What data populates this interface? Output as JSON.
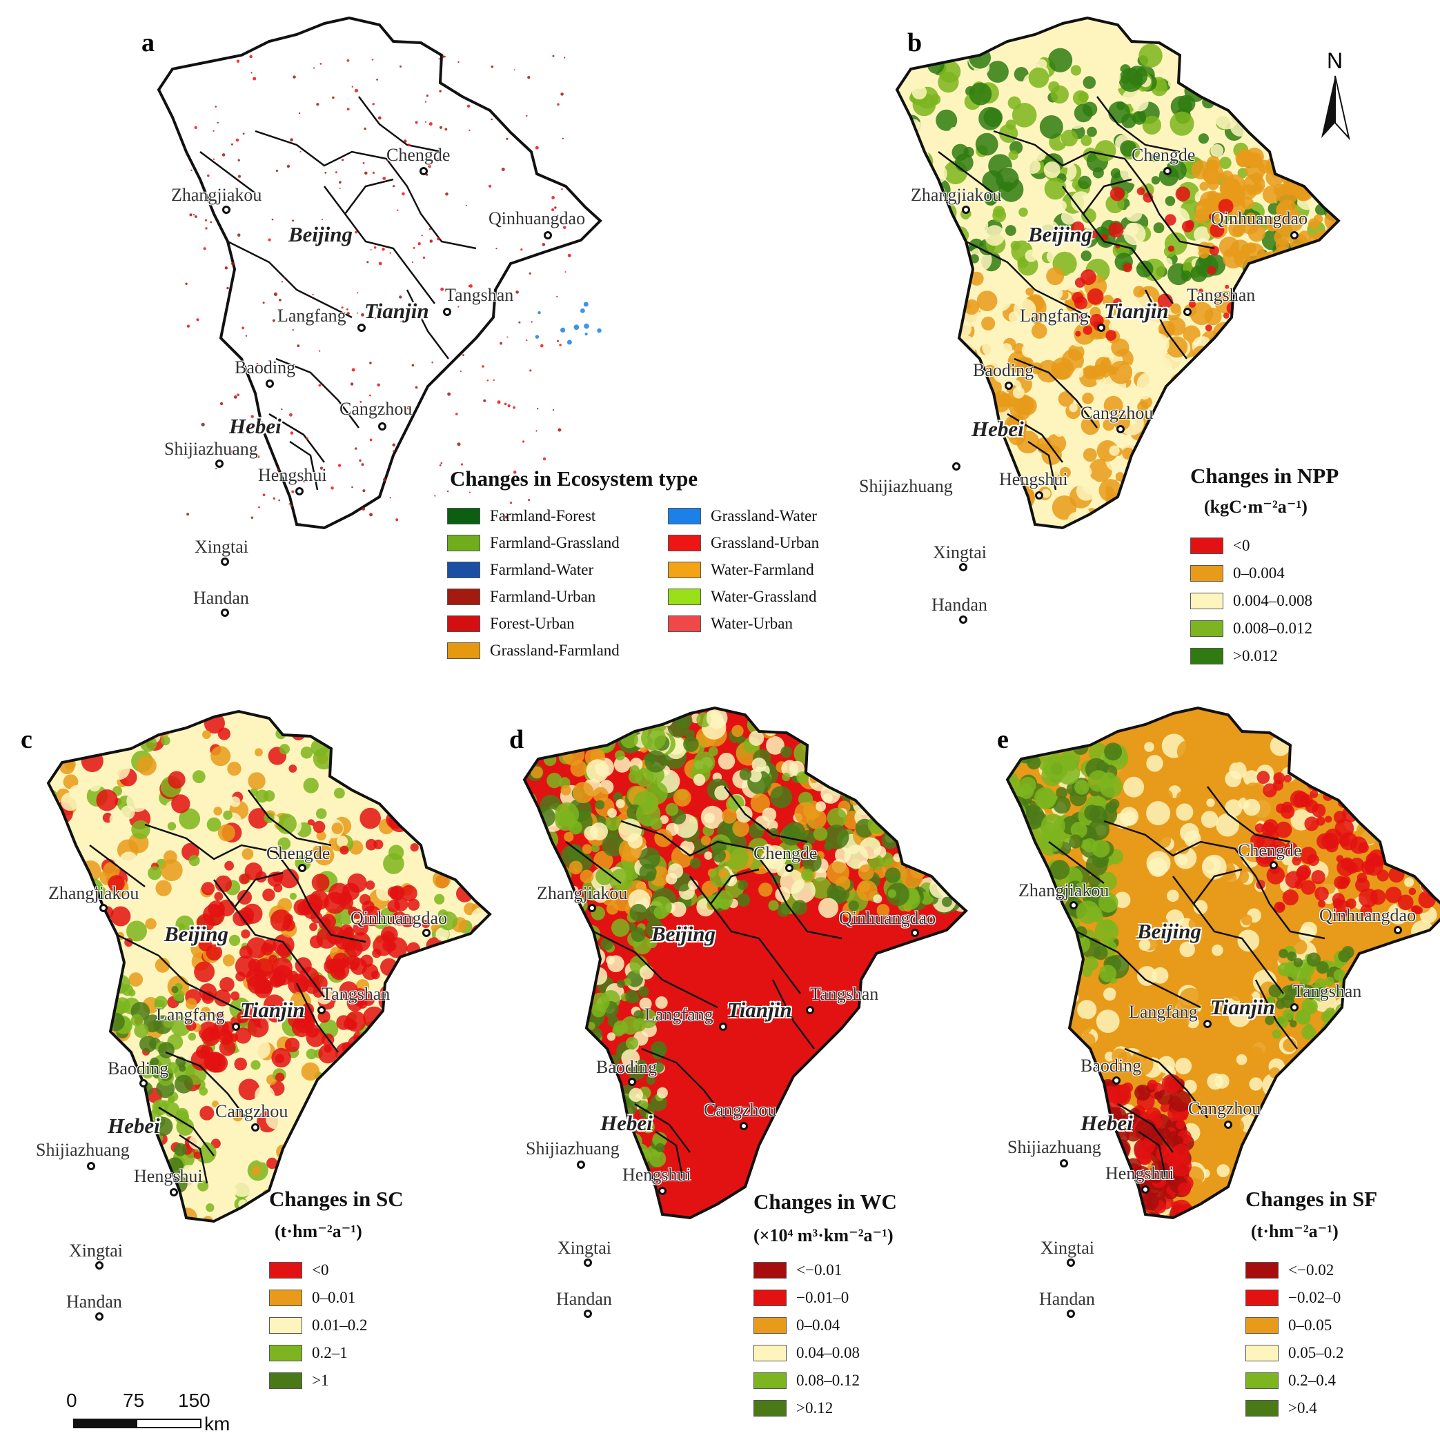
{
  "panels": {
    "a": {
      "label": "a",
      "legend_title": "Changes in Ecosystem type",
      "legend_items": [
        {
          "label": "Farmland-Forest",
          "color": "#0b5e12"
        },
        {
          "label": "Farmland-Grassland",
          "color": "#6fad1c"
        },
        {
          "label": "Farmland-Water",
          "color": "#1c4fa3"
        },
        {
          "label": "Farmland-Urban",
          "color": "#a31a0e"
        },
        {
          "label": "Forest-Urban",
          "color": "#d40f12"
        },
        {
          "label": "Grassland-Farmland",
          "color": "#e6980f"
        },
        {
          "label": "Grassland-Water",
          "color": "#1c80e8"
        },
        {
          "label": "Grassland-Urban",
          "color": "#ee1515"
        },
        {
          "label": "Water-Farmland",
          "color": "#f2a316"
        },
        {
          "label": "Water-Grassland",
          "color": "#9ae018"
        },
        {
          "label": "Water-Urban",
          "color": "#f04848"
        }
      ]
    },
    "b": {
      "label": "b",
      "legend_title": "Changes in NPP",
      "legend_unit": "(kgC·m⁻²a⁻¹)",
      "legend_items": [
        {
          "label": "<0",
          "color": "#e31212"
        },
        {
          "label": "0–0.004",
          "color": "#e89a1a"
        },
        {
          "label": "0.004–0.008",
          "color": "#fdf5bd"
        },
        {
          "label": "0.008–0.012",
          "color": "#7cb51f"
        },
        {
          "label": ">0.012",
          "color": "#2f7b12"
        }
      ]
    },
    "c": {
      "label": "c",
      "legend_title": "Changes in SC",
      "legend_unit": "(t·hm⁻²a⁻¹)",
      "legend_items": [
        {
          "label": "<0",
          "color": "#e31212"
        },
        {
          "label": "0–0.01",
          "color": "#e89a1a"
        },
        {
          "label": "0.01–0.2",
          "color": "#fdf5bd"
        },
        {
          "label": "0.2–1",
          "color": "#7cb51f"
        },
        {
          "label": ">1",
          "color": "#4a7a18"
        }
      ]
    },
    "d": {
      "label": "d",
      "legend_title": "Changes in WC",
      "legend_unit": "(×10⁴ m³·km⁻²a⁻¹)",
      "legend_items": [
        {
          "label": "<−0.01",
          "color": "#a80d0d"
        },
        {
          "label": "−0.01–0",
          "color": "#e31212"
        },
        {
          "label": "0–0.04",
          "color": "#e89a1a"
        },
        {
          "label": "0.04–0.08",
          "color": "#fdf5bd"
        },
        {
          "label": "0.08–0.12",
          "color": "#7cb51f"
        },
        {
          "label": ">0.12",
          "color": "#4a7a18"
        }
      ]
    },
    "e": {
      "label": "e",
      "legend_title": "Changes in SF",
      "legend_unit": "(t·hm⁻²a⁻¹)",
      "legend_items": [
        {
          "label": "<−0.02",
          "color": "#a80d0d"
        },
        {
          "label": "−0.02–0",
          "color": "#e31212"
        },
        {
          "label": "0–0.05",
          "color": "#e89a1a"
        },
        {
          "label": "0.05–0.2",
          "color": "#fdf5bd"
        },
        {
          "label": "0.2–0.4",
          "color": "#7cb51f"
        },
        {
          "label": ">0.4",
          "color": "#4a7a18"
        }
      ]
    }
  },
  "cities": [
    "Chengde",
    "Zhangjiakou",
    "Qinhuangdao",
    "Tangshan",
    "Langfang",
    "Baoding",
    "Cangzhou",
    "Shijiazhuang",
    "Hengshui",
    "Xingtai",
    "Handan"
  ],
  "regions": {
    "beijing": "Beijing",
    "tianjin": "Tianjin",
    "hebei": "Hebei"
  },
  "north_label": "N",
  "scale_bar": {
    "ticks": [
      "0",
      "75",
      "150"
    ],
    "unit": "km"
  }
}
